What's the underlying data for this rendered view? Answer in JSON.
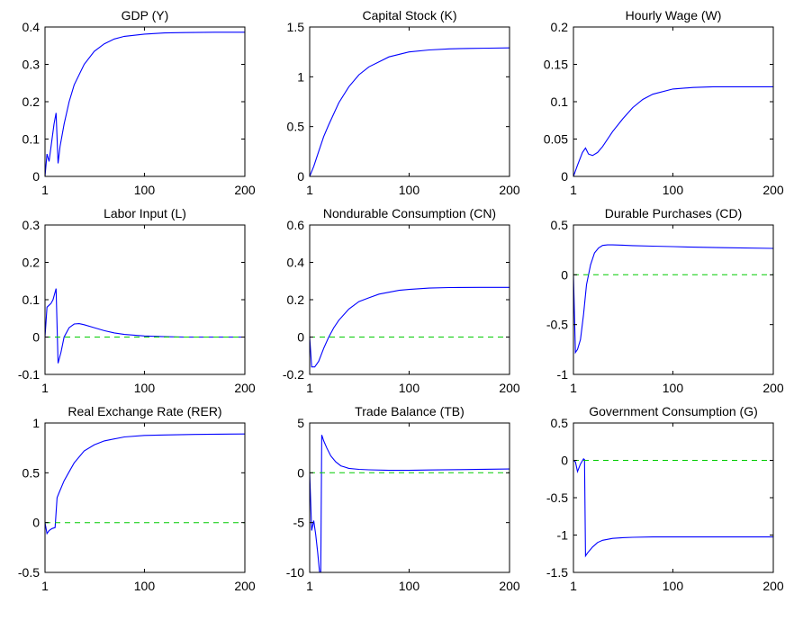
{
  "figure": {
    "colors": {
      "axes": "#000000",
      "response": "#0000ff",
      "zero_line": "#00cc00"
    }
  },
  "chart_data": [
    {
      "type": "line",
      "title": "GDP (Y)",
      "xlim": [
        1,
        200
      ],
      "ylim": [
        0,
        0.4
      ],
      "xticks": [
        "1",
        "100",
        "200"
      ],
      "yticks": [
        "0",
        "0.1",
        "0.2",
        "0.3",
        "0.4"
      ],
      "series": [
        {
          "role": "response",
          "x": [
            1,
            3,
            5,
            8,
            10,
            12,
            14,
            16,
            20,
            25,
            30,
            40,
            50,
            60,
            70,
            80,
            100,
            120,
            140,
            170,
            200
          ],
          "y": [
            0,
            0.06,
            0.04,
            0.1,
            0.14,
            0.17,
            0.035,
            0.08,
            0.14,
            0.2,
            0.245,
            0.3,
            0.335,
            0.355,
            0.368,
            0.375,
            0.381,
            0.384,
            0.385,
            0.386,
            0.386
          ]
        },
        {
          "role": "zero_line",
          "x": [
            1,
            200
          ],
          "y": [
            0,
            0
          ]
        }
      ]
    },
    {
      "type": "line",
      "title": "Capital Stock (K)",
      "xlim": [
        1,
        200
      ],
      "ylim": [
        0,
        1.5
      ],
      "xticks": [
        "1",
        "100",
        "200"
      ],
      "yticks": [
        "0",
        "0.5",
        "1",
        "1.5"
      ],
      "series": [
        {
          "role": "response",
          "x": [
            1,
            5,
            10,
            15,
            20,
            30,
            40,
            50,
            60,
            80,
            100,
            120,
            140,
            160,
            180,
            200
          ],
          "y": [
            0,
            0.1,
            0.25,
            0.4,
            0.52,
            0.74,
            0.9,
            1.02,
            1.1,
            1.2,
            1.25,
            1.27,
            1.28,
            1.285,
            1.288,
            1.29
          ]
        },
        {
          "role": "zero_line",
          "x": [
            1,
            200
          ],
          "y": [
            0,
            0
          ]
        }
      ]
    },
    {
      "type": "line",
      "title": "Hourly Wage (W)",
      "xlim": [
        1,
        200
      ],
      "ylim": [
        0,
        0.2
      ],
      "xticks": [
        "1",
        "100",
        "200"
      ],
      "yticks": [
        "0",
        "0.05",
        "0.1",
        "0.15",
        "0.2"
      ],
      "series": [
        {
          "role": "response",
          "x": [
            1,
            5,
            10,
            13,
            16,
            20,
            25,
            30,
            40,
            50,
            60,
            70,
            80,
            100,
            120,
            140,
            170,
            200
          ],
          "y": [
            0,
            0.015,
            0.032,
            0.038,
            0.03,
            0.028,
            0.032,
            0.04,
            0.06,
            0.077,
            0.092,
            0.103,
            0.11,
            0.117,
            0.119,
            0.12,
            0.12,
            0.12
          ]
        },
        {
          "role": "zero_line",
          "x": [
            1,
            200
          ],
          "y": [
            0,
            0
          ]
        }
      ]
    },
    {
      "type": "line",
      "title": "Labor Input (L)",
      "xlim": [
        1,
        200
      ],
      "ylim": [
        -0.1,
        0.3
      ],
      "xticks": [
        "1",
        "100",
        "200"
      ],
      "yticks": [
        "-0.1",
        "0",
        "0.1",
        "0.2",
        "0.3"
      ],
      "series": [
        {
          "role": "response",
          "x": [
            1,
            3,
            5,
            7,
            9,
            12,
            14,
            17,
            20,
            25,
            30,
            35,
            40,
            50,
            60,
            70,
            80,
            100,
            120,
            140,
            170,
            200
          ],
          "y": [
            0,
            0.08,
            0.085,
            0.09,
            0.1,
            0.13,
            -0.07,
            -0.04,
            0,
            0.025,
            0.035,
            0.036,
            0.033,
            0.025,
            0.017,
            0.011,
            0.007,
            0.003,
            0.001,
            0,
            0,
            0
          ]
        },
        {
          "role": "zero_line",
          "x": [
            1,
            200
          ],
          "y": [
            0,
            0
          ]
        }
      ]
    },
    {
      "type": "line",
      "title": "Nondurable Consumption (CN)",
      "xlim": [
        1,
        200
      ],
      "ylim": [
        -0.2,
        0.6
      ],
      "xticks": [
        "1",
        "100",
        "200"
      ],
      "yticks": [
        "-0.2",
        "0",
        "0.2",
        "0.4",
        "0.6"
      ],
      "series": [
        {
          "role": "response",
          "x": [
            1,
            3,
            6,
            10,
            15,
            20,
            25,
            30,
            40,
            50,
            60,
            70,
            80,
            90,
            100,
            120,
            140,
            170,
            200
          ],
          "y": [
            0,
            -0.16,
            -0.16,
            -0.13,
            -0.06,
            0,
            0.05,
            0.09,
            0.15,
            0.19,
            0.21,
            0.23,
            0.24,
            0.25,
            0.255,
            0.262,
            0.265,
            0.266,
            0.266
          ]
        },
        {
          "role": "zero_line",
          "x": [
            1,
            200
          ],
          "y": [
            0,
            0
          ]
        }
      ]
    },
    {
      "type": "line",
      "title": "Durable Purchases (CD)",
      "xlim": [
        1,
        200
      ],
      "ylim": [
        -1,
        0.5
      ],
      "xticks": [
        "1",
        "100",
        "200"
      ],
      "yticks": [
        "-1",
        "-0.5",
        "0",
        "0.5"
      ],
      "series": [
        {
          "role": "response",
          "x": [
            1,
            3,
            5,
            8,
            11,
            14,
            18,
            22,
            26,
            30,
            35,
            40,
            50,
            60,
            80,
            100,
            120,
            150,
            200
          ],
          "y": [
            0,
            -0.78,
            -0.75,
            -0.65,
            -0.4,
            -0.1,
            0.1,
            0.22,
            0.27,
            0.295,
            0.3,
            0.3,
            0.298,
            0.293,
            0.288,
            0.283,
            0.278,
            0.272,
            0.265
          ]
        },
        {
          "role": "zero_line",
          "x": [
            1,
            200
          ],
          "y": [
            0,
            0
          ]
        }
      ]
    },
    {
      "type": "line",
      "title": "Real Exchange Rate (RER)",
      "xlim": [
        1,
        200
      ],
      "ylim": [
        -0.5,
        1
      ],
      "xticks": [
        "1",
        "100",
        "200"
      ],
      "yticks": [
        "-0.5",
        "0",
        "0.5",
        "1"
      ],
      "series": [
        {
          "role": "response",
          "x": [
            1,
            3,
            5,
            8,
            11,
            13,
            15,
            20,
            25,
            30,
            40,
            50,
            60,
            80,
            100,
            120,
            150,
            200
          ],
          "y": [
            0,
            -0.11,
            -0.08,
            -0.06,
            -0.05,
            0.25,
            0.3,
            0.42,
            0.51,
            0.6,
            0.72,
            0.78,
            0.82,
            0.86,
            0.875,
            0.88,
            0.885,
            0.89
          ]
        },
        {
          "role": "zero_line",
          "x": [
            1,
            200
          ],
          "y": [
            0,
            0
          ]
        }
      ]
    },
    {
      "type": "line",
      "title": "Trade Balance (TB)",
      "xlim": [
        1,
        200
      ],
      "ylim": [
        -10,
        5
      ],
      "xticks": [
        "1",
        "100",
        "200"
      ],
      "yticks": [
        "-10",
        "-5",
        "0",
        "5"
      ],
      "series": [
        {
          "role": "response",
          "x": [
            1,
            3,
            5,
            7,
            9,
            11,
            12,
            13,
            15,
            18,
            22,
            27,
            32,
            40,
            50,
            60,
            80,
            100,
            120,
            150,
            200
          ],
          "y": [
            0,
            -5.8,
            -4.8,
            -6.2,
            -8,
            -10.2,
            -10.3,
            3.8,
            3.2,
            2.5,
            1.7,
            1.1,
            0.7,
            0.45,
            0.35,
            0.3,
            0.25,
            0.25,
            0.28,
            0.32,
            0.38
          ]
        },
        {
          "role": "zero_line",
          "x": [
            1,
            200
          ],
          "y": [
            0,
            0
          ]
        }
      ]
    },
    {
      "type": "line",
      "title": "Government Consumption (G)",
      "xlim": [
        1,
        200
      ],
      "ylim": [
        -1.5,
        0.5
      ],
      "xticks": [
        "1",
        "100",
        "200"
      ],
      "yticks": [
        "-1.5",
        "-1",
        "-0.5",
        "0",
        "0.5"
      ],
      "series": [
        {
          "role": "response",
          "x": [
            1,
            3,
            5,
            8,
            11,
            12,
            13,
            15,
            20,
            25,
            30,
            40,
            50,
            60,
            80,
            100,
            120,
            150,
            200
          ],
          "y": [
            0,
            -0.02,
            -0.15,
            -0.05,
            0.02,
            0.01,
            -1.28,
            -1.24,
            -1.16,
            -1.1,
            -1.07,
            -1.045,
            -1.035,
            -1.03,
            -1.025,
            -1.025,
            -1.025,
            -1.025,
            -1.025
          ]
        },
        {
          "role": "zero_line",
          "x": [
            1,
            200
          ],
          "y": [
            0,
            0
          ]
        }
      ]
    }
  ]
}
